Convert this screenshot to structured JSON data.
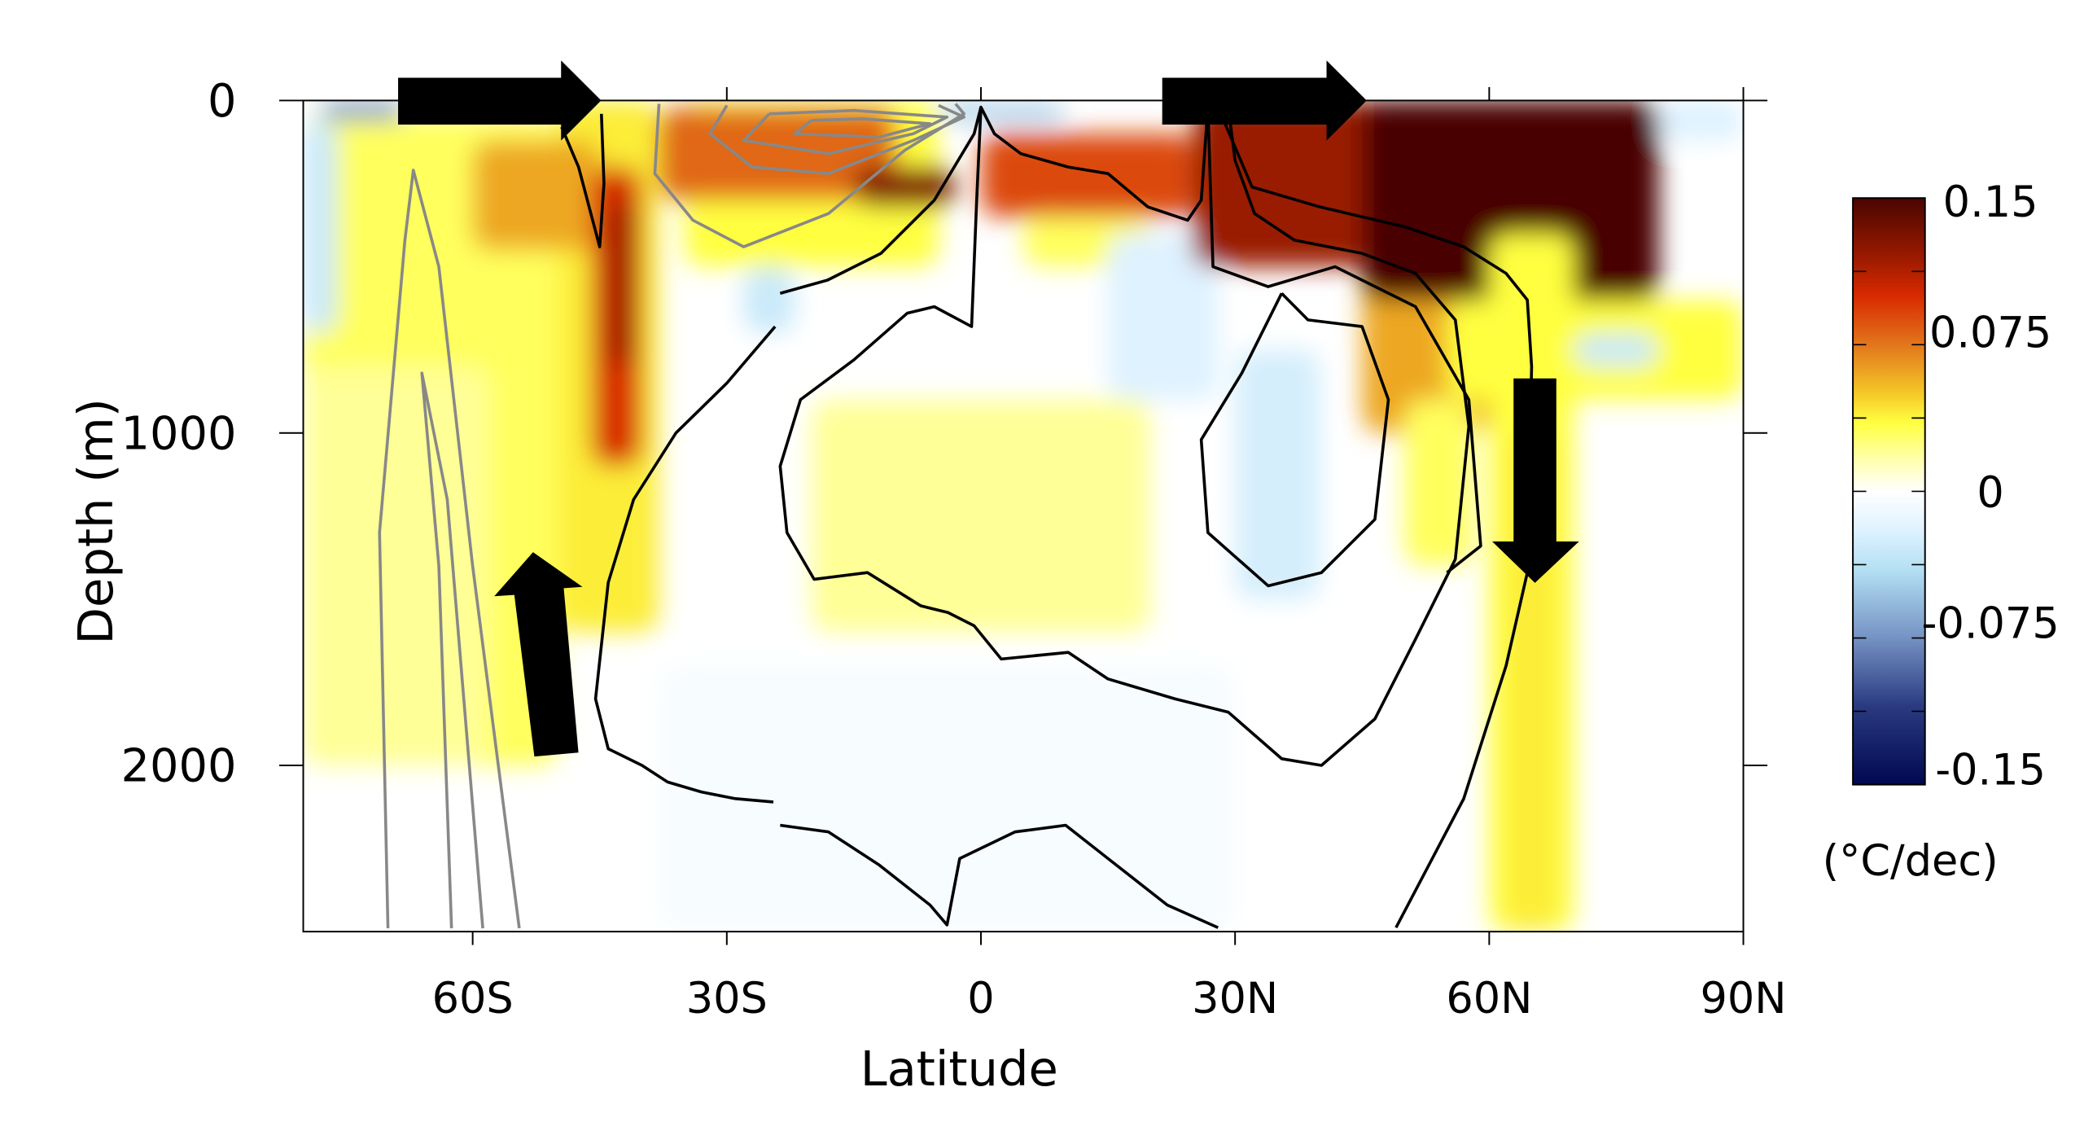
{
  "chart_data": {
    "type": "heatmap",
    "title": "",
    "xlabel": "Latitude",
    "ylabel": "Depth (m)",
    "xlim": [
      -80,
      90
    ],
    "ylim": [
      2500,
      0
    ],
    "x_ticks": [
      {
        "value": -60,
        "label": "60S"
      },
      {
        "value": -30,
        "label": "30S"
      },
      {
        "value": 0,
        "label": "0"
      },
      {
        "value": 30,
        "label": "30N"
      },
      {
        "value": 60,
        "label": "60N"
      },
      {
        "value": 90,
        "label": "90N"
      }
    ],
    "y_ticks": [
      {
        "value": 0,
        "label": "0"
      },
      {
        "value": 1000,
        "label": "1000"
      },
      {
        "value": 2000,
        "label": "2000"
      }
    ],
    "colorbar": {
      "range": [
        -0.15,
        0.15
      ],
      "tick_labels": [
        {
          "value": 0.15,
          "label": "0.15"
        },
        {
          "value": 0.075,
          "label": "0.075"
        },
        {
          "value": 0,
          "label": "0"
        },
        {
          "value": -0.075,
          "label": "-0.075"
        },
        {
          "value": -0.15,
          "label": "-0.15"
        }
      ],
      "unit": "(°C/dec)",
      "colors": [
        {
          "v": 0.15,
          "c": "#4a0500"
        },
        {
          "v": 0.12,
          "c": "#9a1a00"
        },
        {
          "v": 0.1,
          "c": "#d82a00"
        },
        {
          "v": 0.075,
          "c": "#e2761c"
        },
        {
          "v": 0.05,
          "c": "#f5c828"
        },
        {
          "v": 0.035,
          "c": "#ffff40"
        },
        {
          "v": 0.015,
          "c": "#ffffb4"
        },
        {
          "v": 0,
          "c": "#ffffff"
        },
        {
          "v": -0.02,
          "c": "#def2ff"
        },
        {
          "v": -0.04,
          "c": "#b4e0f4"
        },
        {
          "v": -0.075,
          "c": "#7592c4"
        },
        {
          "v": -0.11,
          "c": "#2a3a80"
        },
        {
          "v": -0.15,
          "c": "#000850"
        }
      ]
    },
    "field": [
      {
        "lat": [
          -80,
          -50
        ],
        "depth": [
          50,
          2000
        ],
        "value": 0.03
      },
      {
        "lat": [
          -80,
          -58
        ],
        "depth": [
          800,
          2000
        ],
        "value": 0.02
      },
      {
        "lat": [
          -80,
          -76
        ],
        "depth": [
          60,
          700
        ],
        "value": -0.03
      },
      {
        "lat": [
          -78,
          -68
        ],
        "depth": [
          0,
          60
        ],
        "value": -0.07
      },
      {
        "lat": [
          -38,
          30
        ],
        "depth": [
          1700,
          2500
        ],
        "value": -0.005
      },
      {
        "lat": [
          -50,
          -38
        ],
        "depth": [
          0,
          1600
        ],
        "value": 0.04
      },
      {
        "lat": [
          -60,
          -45
        ],
        "depth": [
          120,
          450
        ],
        "value": 0.06
      },
      {
        "lat": [
          -46,
          -40
        ],
        "depth": [
          200,
          1100
        ],
        "value": 0.1
      },
      {
        "lat": [
          -44,
          -41
        ],
        "depth": [
          300,
          800
        ],
        "value": 0.12
      },
      {
        "lat": [
          -35,
          -5
        ],
        "depth": [
          0,
          500
        ],
        "value": 0.035
      },
      {
        "lat": [
          -38,
          -10
        ],
        "depth": [
          20,
          300
        ],
        "value": 0.08
      },
      {
        "lat": [
          -15,
          -3
        ],
        "depth": [
          200,
          320
        ],
        "value": 0.13
      },
      {
        "lat": [
          -28,
          -22
        ],
        "depth": [
          500,
          700
        ],
        "value": -0.03
      },
      {
        "lat": [
          -20,
          20
        ],
        "depth": [
          900,
          1600
        ],
        "value": 0.02
      },
      {
        "lat": [
          -5,
          10
        ],
        "depth": [
          10,
          60
        ],
        "value": -0.05
      },
      {
        "lat": [
          0,
          25
        ],
        "depth": [
          100,
          350
        ],
        "value": 0.09
      },
      {
        "lat": [
          5,
          20
        ],
        "depth": [
          350,
          500
        ],
        "value": 0.03
      },
      {
        "lat": [
          15,
          28
        ],
        "depth": [
          400,
          900
        ],
        "value": -0.02
      },
      {
        "lat": [
          30,
          40
        ],
        "depth": [
          750,
          1500
        ],
        "value": -0.025
      },
      {
        "lat": [
          25,
          48
        ],
        "depth": [
          0,
          500
        ],
        "value": 0.12
      },
      {
        "lat": [
          45,
          60
        ],
        "depth": [
          500,
          1000
        ],
        "value": 0.06
      },
      {
        "lat": [
          45,
          80
        ],
        "depth": [
          0,
          600
        ],
        "value": 0.16
      },
      {
        "lat": [
          55,
          90
        ],
        "depth": [
          600,
          900
        ],
        "value": 0.035
      },
      {
        "lat": [
          60,
          70
        ],
        "depth": [
          400,
          2500
        ],
        "value": 0.035
      },
      {
        "lat": [
          62,
          68
        ],
        "depth": [
          1000,
          2500
        ],
        "value": 0.04
      },
      {
        "lat": [
          50,
          58
        ],
        "depth": [
          900,
          1400
        ],
        "value": 0.03
      },
      {
        "lat": [
          70,
          80
        ],
        "depth": [
          700,
          800
        ],
        "value": -0.03
      },
      {
        "lat": [
          80,
          90
        ],
        "depth": [
          0,
          120
        ],
        "value": -0.02
      }
    ],
    "contours_gray": [
      [
        [
          -70,
          2490
        ],
        [
          -71,
          1300
        ],
        [
          -68,
          420
        ],
        [
          -67,
          210
        ],
        [
          -64,
          500
        ],
        [
          -60,
          1400
        ],
        [
          -54.5,
          2490
        ]
      ],
      [
        [
          -62.5,
          2490
        ],
        [
          -64,
          1400
        ],
        [
          -66,
          820
        ],
        [
          -63,
          1200
        ],
        [
          -58.8,
          2490
        ]
      ],
      [
        [
          -38,
          10
        ],
        [
          -38.5,
          220
        ],
        [
          -34,
          360
        ],
        [
          -28,
          440
        ],
        [
          -18,
          340
        ],
        [
          -9,
          150
        ],
        [
          -2,
          40
        ],
        [
          -3,
          10
        ]
      ],
      [
        [
          -30,
          15
        ],
        [
          -32,
          100
        ],
        [
          -27,
          200
        ],
        [
          -18,
          220
        ],
        [
          -8,
          120
        ],
        [
          -2,
          50
        ],
        [
          -5,
          15
        ]
      ],
      [
        [
          -25,
          40
        ],
        [
          -28,
          120
        ],
        [
          -18,
          160
        ],
        [
          -8,
          100
        ],
        [
          -4,
          50
        ],
        [
          -15,
          30
        ],
        [
          -25,
          40
        ]
      ],
      [
        [
          -20,
          60
        ],
        [
          -22,
          100
        ],
        [
          -12,
          110
        ],
        [
          -6,
          70
        ],
        [
          -14,
          55
        ],
        [
          -20,
          60
        ]
      ]
    ],
    "contours_black": [
      [
        [
          -49.5,
          80
        ],
        [
          -47.5,
          200
        ],
        [
          -45,
          440
        ],
        [
          -44.5,
          250
        ],
        [
          -44.8,
          40
        ]
      ],
      [
        [
          -24.3,
          680
        ],
        [
          -30,
          850
        ],
        [
          -36,
          1000
        ],
        [
          -41,
          1200
        ],
        [
          -44,
          1450
        ],
        [
          -45.5,
          1800
        ],
        [
          -44,
          1950
        ],
        [
          -40,
          2000
        ],
        [
          -37,
          2050
        ],
        [
          -33,
          2080
        ],
        [
          -29,
          2100
        ],
        [
          -24.5,
          2110
        ]
      ],
      [
        [
          -23.7,
          580
        ],
        [
          -18.1,
          540
        ],
        [
          -11.8,
          460
        ],
        [
          -5.5,
          300
        ],
        [
          -0.8,
          100
        ],
        [
          0,
          20
        ],
        [
          1.6,
          100
        ],
        [
          4.7,
          160
        ],
        [
          10.3,
          200
        ],
        [
          15,
          220
        ],
        [
          19.7,
          320
        ],
        [
          24.4,
          360
        ],
        [
          26,
          300
        ],
        [
          26.8,
          20
        ]
      ],
      [
        [
          0,
          20
        ],
        [
          -0.5,
          300
        ],
        [
          -1.1,
          680
        ],
        [
          -5.5,
          620
        ],
        [
          -8.7,
          640
        ],
        [
          -15,
          780
        ],
        [
          -21.3,
          900
        ],
        [
          -23.7,
          1100
        ],
        [
          -22.9,
          1300
        ],
        [
          -19.7,
          1440
        ],
        [
          -13.4,
          1420
        ],
        [
          -7.1,
          1520
        ],
        [
          -3.9,
          1540
        ],
        [
          -0.8,
          1580
        ],
        [
          2.4,
          1680
        ],
        [
          10.3,
          1660
        ],
        [
          15,
          1740
        ],
        [
          22.9,
          1800
        ],
        [
          29.2,
          1840
        ],
        [
          35.5,
          1980
        ],
        [
          40.2,
          2000
        ],
        [
          46.5,
          1860
        ],
        [
          51.3,
          1620
        ],
        [
          56,
          1380
        ],
        [
          57.6,
          980
        ],
        [
          56,
          660
        ],
        [
          51.3,
          520
        ],
        [
          45,
          460
        ],
        [
          37,
          420
        ],
        [
          32.3,
          340
        ],
        [
          30,
          180
        ],
        [
          29.2,
          20
        ]
      ],
      [
        [
          26.8,
          20
        ],
        [
          27.4,
          500
        ],
        [
          33.9,
          560
        ],
        [
          41.8,
          500
        ],
        [
          51.3,
          620
        ],
        [
          57.6,
          900
        ],
        [
          59,
          1340
        ],
        [
          55,
          1420
        ]
      ],
      [
        [
          35.5,
          580
        ],
        [
          30.8,
          820
        ],
        [
          26,
          1020
        ],
        [
          26.8,
          1300
        ],
        [
          33.9,
          1460
        ],
        [
          40.2,
          1420
        ],
        [
          46.5,
          1260
        ],
        [
          48.1,
          900
        ],
        [
          45,
          680
        ],
        [
          38.6,
          660
        ],
        [
          35.5,
          580
        ]
      ],
      [
        [
          -23.7,
          2180
        ],
        [
          -18,
          2200
        ],
        [
          -12,
          2300
        ],
        [
          -6,
          2420
        ],
        [
          -4,
          2480
        ],
        [
          -2.5,
          2280
        ],
        [
          4,
          2200
        ],
        [
          10,
          2180
        ],
        [
          15,
          2280
        ],
        [
          22,
          2420
        ],
        [
          28,
          2488
        ]
      ],
      [
        [
          49,
          2488
        ],
        [
          57,
          2100
        ],
        [
          62,
          1700
        ],
        [
          64.5,
          1420
        ],
        [
          65,
          800
        ],
        [
          64.5,
          600
        ],
        [
          62,
          520
        ],
        [
          57,
          440
        ],
        [
          50,
          380
        ],
        [
          40,
          320
        ],
        [
          32,
          260
        ],
        [
          28,
          20
        ]
      ]
    ]
  }
}
